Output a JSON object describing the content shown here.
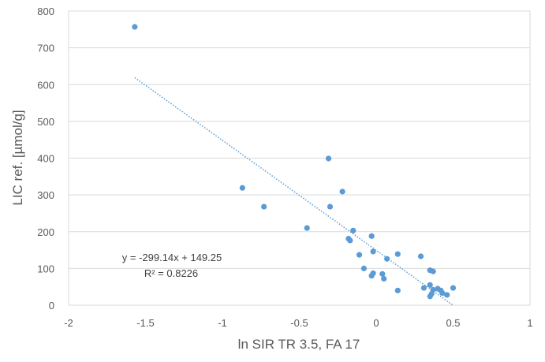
{
  "chart_data": {
    "type": "scatter",
    "xlabel": "ln SIR TR 3.5, FA 17",
    "ylabel": "LIC ref. [µmol/g]",
    "xlim": [
      -2,
      1
    ],
    "ylim": [
      0,
      800
    ],
    "x_ticks": [
      "-2",
      "-1.5",
      "-1",
      "-0.5",
      "0",
      "0.5",
      "1"
    ],
    "y_ticks": [
      "0",
      "100",
      "200",
      "300",
      "400",
      "500",
      "600",
      "700",
      "800"
    ],
    "grid": "horizontal",
    "colors": {
      "marker": "#5b9bd5",
      "trendline": "#5b9bd5",
      "grid": "#d9d9d9",
      "text": "#595959"
    },
    "series": [
      {
        "points": [
          [
            -1.57,
            757
          ],
          [
            -0.87,
            319
          ],
          [
            -0.73,
            268
          ],
          [
            -0.45,
            210
          ],
          [
            -0.31,
            399
          ],
          [
            -0.3,
            268
          ],
          [
            -0.22,
            309
          ],
          [
            -0.18,
            181
          ],
          [
            -0.17,
            176
          ],
          [
            -0.15,
            203
          ],
          [
            -0.11,
            137
          ],
          [
            -0.08,
            100
          ],
          [
            -0.03,
            188
          ],
          [
            -0.02,
            146
          ],
          [
            -0.03,
            80
          ],
          [
            -0.02,
            87
          ],
          [
            0.04,
            85
          ],
          [
            0.05,
            72
          ],
          [
            0.07,
            126
          ],
          [
            0.14,
            139
          ],
          [
            0.14,
            40
          ],
          [
            0.29,
            133
          ],
          [
            0.31,
            47
          ],
          [
            0.35,
            95
          ],
          [
            0.37,
            92
          ],
          [
            0.35,
            55
          ],
          [
            0.35,
            24
          ],
          [
            0.36,
            31
          ],
          [
            0.37,
            42
          ],
          [
            0.4,
            45
          ],
          [
            0.42,
            40
          ],
          [
            0.43,
            33
          ],
          [
            0.46,
            28
          ],
          [
            0.5,
            47
          ]
        ]
      }
    ],
    "trendline": {
      "type": "linear",
      "slope": -299.14,
      "intercept": 149.25,
      "x_range": [
        -1.57,
        0.5
      ],
      "style": "dotted",
      "equation_label": "y = -299.14x + 149.25",
      "r2_label": "R² = 0.8226"
    }
  }
}
